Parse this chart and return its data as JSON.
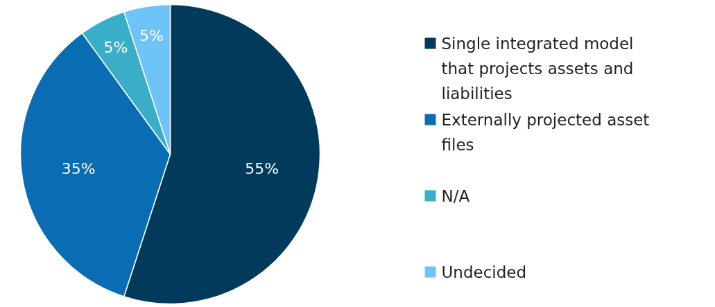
{
  "chart_data": {
    "type": "pie",
    "categories": [
      "Single integrated model that projects assets and liabilities",
      "Externally projected asset files",
      "N/A",
      "Undecided"
    ],
    "values": [
      55,
      35,
      5,
      5
    ],
    "colors": [
      "#023a5c",
      "#0a6db3",
      "#3aaec8",
      "#6ec4f8"
    ],
    "value_labels": [
      "55%",
      "35%",
      "5%",
      "5%"
    ],
    "legend": "right"
  }
}
